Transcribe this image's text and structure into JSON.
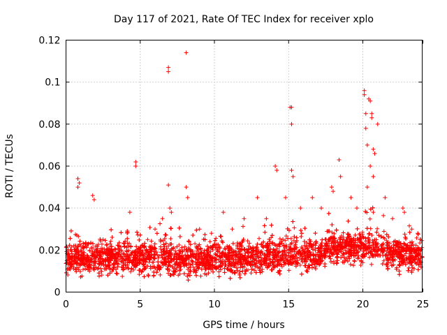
{
  "chart_data": {
    "type": "scatter",
    "title": "Day 117 of 2021, Rate Of TEC Index for receiver xplo",
    "xlabel": "GPS time / hours",
    "ylabel": "ROTI / TECUs",
    "xlim": [
      0,
      24
    ],
    "ylim": [
      0,
      0.12
    ],
    "xticks": [
      "0",
      "5",
      "10",
      "15",
      "20",
      "25"
    ],
    "yticks": [
      "0",
      "0.02",
      "0.04",
      "0.06",
      "0.08",
      "0.1",
      "0.12"
    ],
    "grid": true,
    "marker": "+",
    "color": "#ff0000",
    "series": [
      {
        "name": "ROTI",
        "points": [
          [
            0.1,
            0.015
          ],
          [
            0.3,
            0.02
          ],
          [
            0.5,
            0.012
          ],
          [
            0.7,
            0.018
          ],
          [
            0.8,
            0.054
          ],
          [
            0.8,
            0.05
          ],
          [
            0.9,
            0.052
          ],
          [
            1.0,
            0.022
          ],
          [
            1.4,
            0.016
          ],
          [
            1.8,
            0.046
          ],
          [
            1.9,
            0.044
          ],
          [
            2.5,
            0.025
          ],
          [
            3.0,
            0.02
          ],
          [
            3.6,
            0.018
          ],
          [
            4.2,
            0.022
          ],
          [
            4.3,
            0.038
          ],
          [
            4.7,
            0.062
          ],
          [
            4.7,
            0.06
          ],
          [
            5.5,
            0.025
          ],
          [
            6.0,
            0.03
          ],
          [
            6.5,
            0.035
          ],
          [
            6.9,
            0.107
          ],
          [
            6.9,
            0.105
          ],
          [
            6.9,
            0.051
          ],
          [
            7.0,
            0.04
          ],
          [
            7.1,
            0.038
          ],
          [
            8.1,
            0.114
          ],
          [
            8.1,
            0.05
          ],
          [
            8.2,
            0.045
          ],
          [
            9.0,
            0.03
          ],
          [
            9.8,
            0.028
          ],
          [
            10.6,
            0.038
          ],
          [
            11.2,
            0.03
          ],
          [
            12.0,
            0.035
          ],
          [
            12.9,
            0.045
          ],
          [
            13.5,
            0.035
          ],
          [
            14.1,
            0.06
          ],
          [
            14.2,
            0.058
          ],
          [
            14.8,
            0.045
          ],
          [
            15.1,
            0.088
          ],
          [
            15.2,
            0.088
          ],
          [
            15.2,
            0.08
          ],
          [
            15.2,
            0.058
          ],
          [
            15.3,
            0.055
          ],
          [
            15.8,
            0.04
          ],
          [
            16.6,
            0.045
          ],
          [
            17.2,
            0.04
          ],
          [
            17.9,
            0.05
          ],
          [
            18.0,
            0.048
          ],
          [
            18.4,
            0.063
          ],
          [
            18.5,
            0.055
          ],
          [
            19.2,
            0.045
          ],
          [
            19.6,
            0.04
          ],
          [
            20.1,
            0.096
          ],
          [
            20.1,
            0.094
          ],
          [
            20.2,
            0.085
          ],
          [
            20.2,
            0.078
          ],
          [
            20.3,
            0.07
          ],
          [
            20.4,
            0.092
          ],
          [
            20.5,
            0.091
          ],
          [
            20.6,
            0.085
          ],
          [
            20.6,
            0.083
          ],
          [
            20.7,
            0.068
          ],
          [
            20.8,
            0.066
          ],
          [
            21.0,
            0.08
          ],
          [
            20.5,
            0.06
          ],
          [
            20.7,
            0.055
          ],
          [
            20.3,
            0.05
          ],
          [
            21.5,
            0.045
          ],
          [
            22.0,
            0.035
          ],
          [
            22.7,
            0.04
          ],
          [
            22.8,
            0.038
          ],
          [
            23.3,
            0.03
          ],
          [
            23.7,
            0.028
          ]
        ]
      }
    ]
  }
}
